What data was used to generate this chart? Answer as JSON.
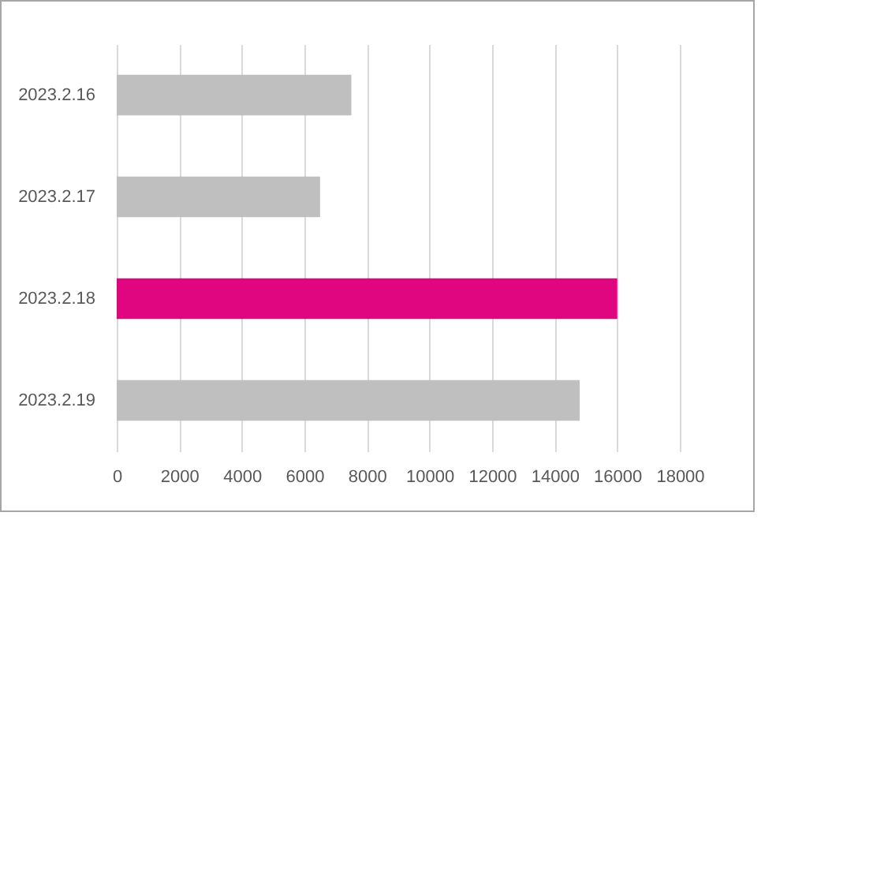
{
  "chart_data": {
    "type": "bar",
    "orientation": "horizontal",
    "categories": [
      "2023.2.16",
      "2023.2.17",
      "2023.2.18",
      "2023.2.19"
    ],
    "values": [
      7500,
      6500,
      16000,
      14800
    ],
    "colors": [
      "#bfbfbf",
      "#bfbfbf",
      "#e0067f",
      "#bfbfbf"
    ],
    "xlim": [
      0,
      18000
    ],
    "xticks": [
      0,
      2000,
      4000,
      6000,
      8000,
      10000,
      12000,
      14000,
      16000,
      18000
    ],
    "grid": "x"
  }
}
